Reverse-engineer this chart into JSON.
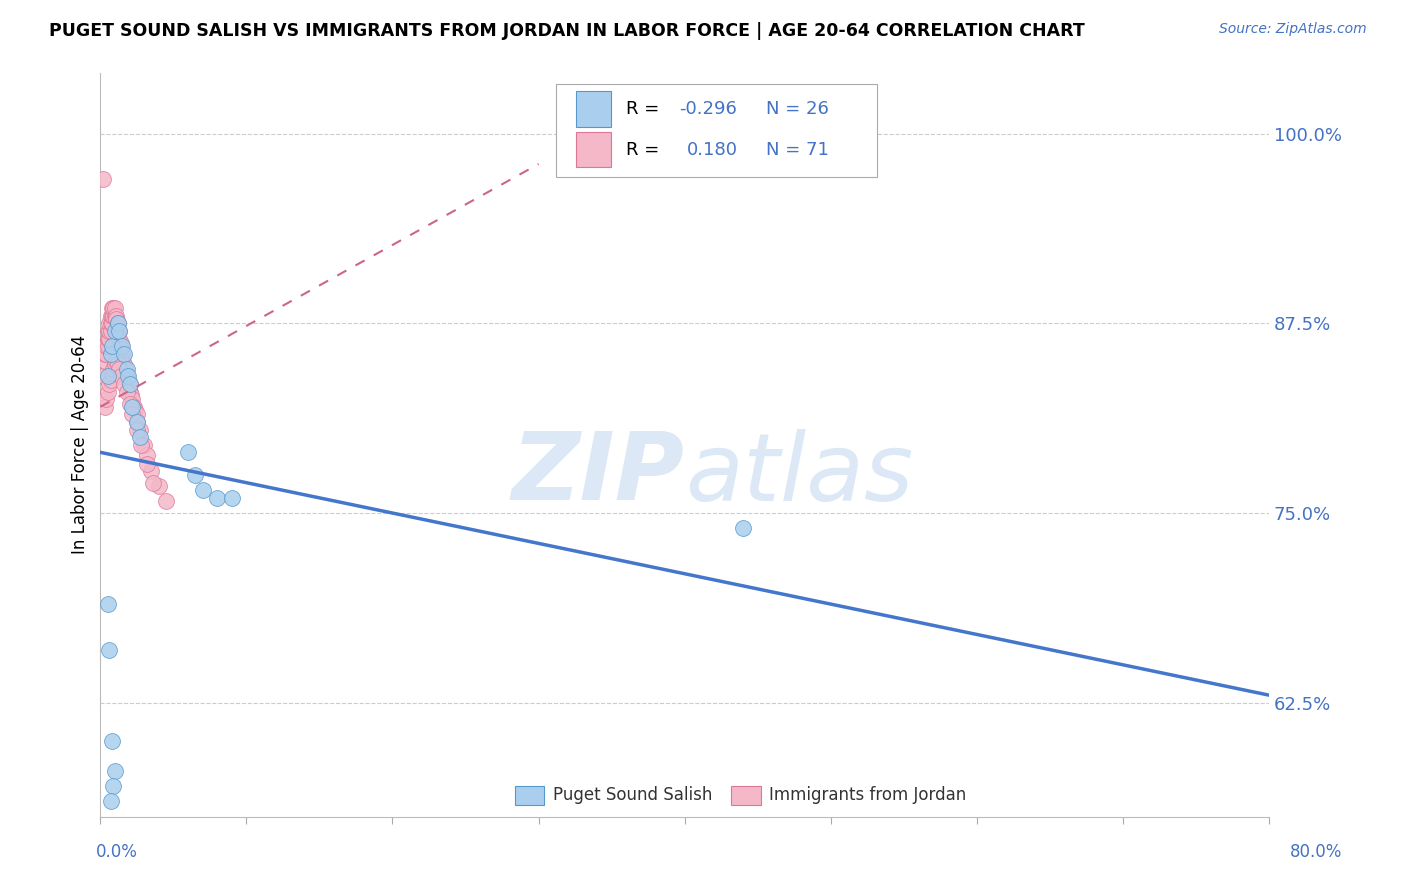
{
  "title": "PUGET SOUND SALISH VS IMMIGRANTS FROM JORDAN IN LABOR FORCE | AGE 20-64 CORRELATION CHART",
  "source": "Source: ZipAtlas.com",
  "ylabel": "In Labor Force | Age 20-64",
  "yticks": [
    0.625,
    0.75,
    0.875,
    1.0
  ],
  "ytick_labels": [
    "62.5%",
    "75.0%",
    "87.5%",
    "100.0%"
  ],
  "xmin": 0.0,
  "xmax": 0.8,
  "ymin": 0.55,
  "ymax": 1.04,
  "blue_R": "-0.296",
  "blue_N": "26",
  "pink_R": "0.180",
  "pink_N": "71",
  "legend1_label": "Puget Sound Salish",
  "legend2_label": "Immigrants from Jordan",
  "blue_color": "#aacfee",
  "pink_color": "#f4b8c8",
  "blue_edge_color": "#5599cc",
  "pink_edge_color": "#dd7799",
  "blue_line_color": "#4477cc",
  "pink_line_color": "#cc6688",
  "text_blue": "#4472c4",
  "watermark_color": "#dce8f5",
  "blue_line_x0": 0.0,
  "blue_line_y0": 0.79,
  "blue_line_x1": 0.8,
  "blue_line_y1": 0.63,
  "pink_line_x0": 0.0,
  "pink_line_y0": 0.82,
  "pink_line_x1": 0.3,
  "pink_line_y1": 0.98,
  "blue_dots_x": [
    0.005,
    0.007,
    0.008,
    0.01,
    0.012,
    0.013,
    0.015,
    0.016,
    0.018,
    0.019,
    0.02,
    0.022,
    0.025,
    0.027,
    0.06,
    0.065,
    0.07,
    0.08,
    0.09,
    0.005,
    0.006,
    0.44,
    0.008,
    0.01,
    0.009,
    0.007
  ],
  "blue_dots_y": [
    0.84,
    0.855,
    0.86,
    0.87,
    0.875,
    0.87,
    0.86,
    0.855,
    0.845,
    0.84,
    0.835,
    0.82,
    0.81,
    0.8,
    0.79,
    0.775,
    0.765,
    0.76,
    0.76,
    0.69,
    0.66,
    0.74,
    0.6,
    0.58,
    0.57,
    0.56
  ],
  "pink_dots_x": [
    0.002,
    0.003,
    0.003,
    0.003,
    0.004,
    0.004,
    0.005,
    0.005,
    0.005,
    0.006,
    0.006,
    0.006,
    0.007,
    0.007,
    0.007,
    0.008,
    0.008,
    0.008,
    0.009,
    0.009,
    0.01,
    0.01,
    0.011,
    0.011,
    0.012,
    0.012,
    0.013,
    0.013,
    0.014,
    0.014,
    0.015,
    0.015,
    0.016,
    0.017,
    0.018,
    0.019,
    0.02,
    0.02,
    0.021,
    0.022,
    0.023,
    0.024,
    0.025,
    0.025,
    0.027,
    0.03,
    0.032,
    0.035,
    0.04,
    0.045,
    0.003,
    0.004,
    0.005,
    0.006,
    0.007,
    0.008,
    0.009,
    0.01,
    0.011,
    0.012,
    0.013,
    0.014,
    0.016,
    0.018,
    0.02,
    0.022,
    0.025,
    0.028,
    0.032,
    0.036,
    0.002
  ],
  "pink_dots_y": [
    0.84,
    0.85,
    0.855,
    0.86,
    0.855,
    0.86,
    0.86,
    0.865,
    0.87,
    0.865,
    0.87,
    0.875,
    0.87,
    0.875,
    0.88,
    0.875,
    0.88,
    0.885,
    0.88,
    0.885,
    0.88,
    0.885,
    0.88,
    0.878,
    0.875,
    0.87,
    0.87,
    0.865,
    0.862,
    0.858,
    0.855,
    0.85,
    0.848,
    0.845,
    0.84,
    0.838,
    0.835,
    0.83,
    0.828,
    0.825,
    0.82,
    0.818,
    0.815,
    0.81,
    0.805,
    0.795,
    0.788,
    0.778,
    0.768,
    0.758,
    0.82,
    0.825,
    0.83,
    0.835,
    0.838,
    0.842,
    0.845,
    0.848,
    0.85,
    0.848,
    0.845,
    0.84,
    0.835,
    0.83,
    0.822,
    0.815,
    0.805,
    0.795,
    0.782,
    0.77,
    0.97
  ]
}
